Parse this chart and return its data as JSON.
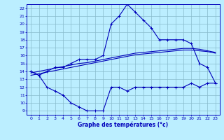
{
  "x": [
    0,
    1,
    2,
    3,
    4,
    5,
    6,
    7,
    8,
    9,
    10,
    11,
    12,
    13,
    14,
    15,
    16,
    17,
    18,
    19,
    20,
    21,
    22,
    23
  ],
  "y_max": [
    14,
    13.5,
    14,
    14.5,
    14.5,
    15,
    15.5,
    15.5,
    15.5,
    16,
    20,
    21,
    22.5,
    21.5,
    20.5,
    19.5,
    18,
    18,
    18,
    18,
    17.5,
    15,
    14.5,
    12.5
  ],
  "y_min": [
    14,
    13.5,
    12,
    11.5,
    11,
    10,
    9.5,
    9,
    9,
    9,
    12,
    12,
    11.5,
    12,
    12,
    12,
    12,
    12,
    12,
    12,
    12.5,
    12,
    12.5,
    12.5
  ],
  "y_trend1": [
    13.5,
    13.7,
    13.9,
    14.1,
    14.3,
    14.5,
    14.7,
    14.9,
    15.1,
    15.3,
    15.5,
    15.7,
    15.9,
    16.1,
    16.2,
    16.3,
    16.4,
    16.5,
    16.6,
    16.7,
    16.7,
    16.6,
    16.5,
    16.3
  ],
  "y_trend2": [
    13.8,
    14.0,
    14.2,
    14.4,
    14.6,
    14.8,
    15.0,
    15.1,
    15.3,
    15.5,
    15.7,
    15.9,
    16.1,
    16.3,
    16.4,
    16.5,
    16.6,
    16.7,
    16.8,
    16.9,
    16.9,
    16.8,
    16.6,
    16.4
  ],
  "bg_color": "#bbeeff",
  "line_color": "#0000bb",
  "grid_color": "#88bbcc",
  "xlabel": "Graphe des températures (°c)",
  "ylim": [
    8.5,
    22.5
  ],
  "xlim": [
    -0.5,
    23.5
  ],
  "yticks": [
    9,
    10,
    11,
    12,
    13,
    14,
    15,
    16,
    17,
    18,
    19,
    20,
    21,
    22
  ],
  "xticks": [
    0,
    1,
    2,
    3,
    4,
    5,
    6,
    7,
    8,
    9,
    10,
    11,
    12,
    13,
    14,
    15,
    16,
    17,
    18,
    19,
    20,
    21,
    22,
    23
  ]
}
